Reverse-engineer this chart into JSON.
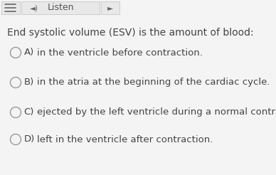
{
  "background_color": "#f4f4f4",
  "toolbar_bg": "#e8e8e8",
  "toolbar_border": "#cccccc",
  "listen_text": "Listen",
  "question_text": "End systolic volume (ESV) is the amount of blood:",
  "options": [
    {
      "label": "A)",
      "text": "  in the ventricle before contraction."
    },
    {
      "label": "B)",
      "text": "  in the atria at the beginning of the cardiac cycle."
    },
    {
      "label": "C)",
      "text": "  ejected by the left ventricle during a normal contraction."
    },
    {
      "label": "D)",
      "text": "  left in the ventricle after contraction."
    }
  ],
  "question_fontsize": 10.0,
  "option_fontsize": 9.5,
  "toolbar_fontsize": 9.0,
  "text_color": "#444444",
  "circle_edge_color": "#999999",
  "toolbar_text_color": "#555555",
  "toolbar_icon_color": "#666666"
}
